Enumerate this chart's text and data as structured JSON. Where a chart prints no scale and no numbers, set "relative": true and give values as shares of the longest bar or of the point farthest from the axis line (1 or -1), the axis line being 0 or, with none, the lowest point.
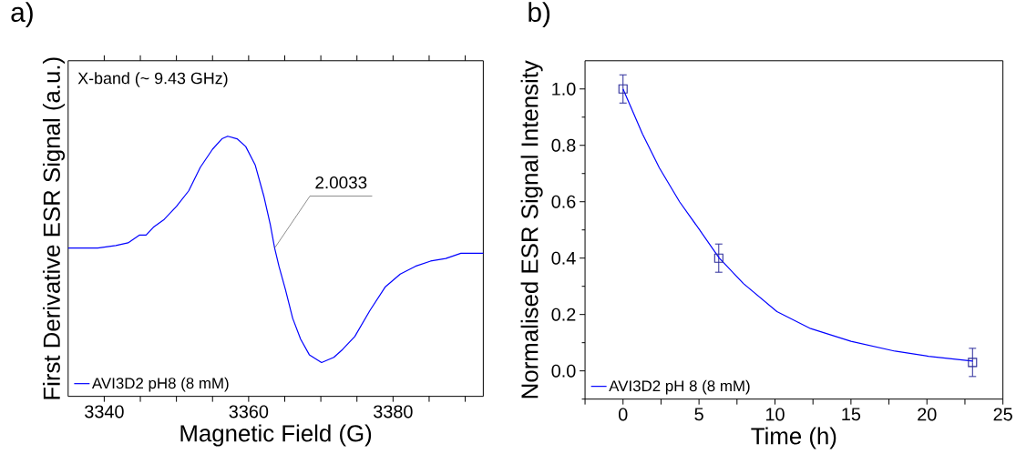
{
  "chart_data": [
    {
      "type": "line",
      "title": "a)",
      "xlabel": "Magnetic Field (G)",
      "ylabel": "First Derivative ESR Signal (a.u.)",
      "relative": true,
      "annotations": [
        "X-band (~ 9.43 GHz)",
        {
          "text": "2.0033",
          "x": 3363.6,
          "y": 0.57
        }
      ],
      "xlim": [
        3335,
        3392.5
      ],
      "xticks": [
        3340,
        3360,
        3380,
        {
          "value": 3345,
          "label": null
        },
        {
          "value": 3350,
          "label": null
        },
        {
          "value": 3355,
          "label": null
        },
        {
          "value": 3365,
          "label": null
        },
        {
          "value": 3370,
          "label": null
        },
        {
          "value": 3375,
          "label": null
        },
        {
          "value": 3385,
          "label": null
        },
        {
          "value": 3390,
          "label": null
        }
      ],
      "legend": "bottom left",
      "series": [
        {
          "name": "AVI3D2 pH8 (8 mM)",
          "color": "#0000ff",
          "x": [
            3335,
            3339.1,
            3341.6,
            3343.3,
            3344.9,
            3345.8,
            3346.8,
            3348.3,
            3350.0,
            3351.7,
            3353.3,
            3355.0,
            3356.3,
            3357.1,
            3358.4,
            3359.6,
            3360.9,
            3362.1,
            3363.0,
            3363.6,
            3364.2,
            3365.1,
            3366.1,
            3367.2,
            3368.4,
            3370.1,
            3371.8,
            3373.0,
            3374.7,
            3376.8,
            3378.9,
            3381.0,
            3383.1,
            3385.2,
            3387.3,
            3389.4,
            3392.5
          ],
          "values": [
            0.57,
            0.57,
            0.58,
            0.59,
            0.62,
            0.62,
            0.65,
            0.68,
            0.73,
            0.79,
            0.88,
            0.95,
            0.99,
            1.0,
            0.99,
            0.96,
            0.89,
            0.77,
            0.66,
            0.57,
            0.5,
            0.41,
            0.3,
            0.22,
            0.16,
            0.13,
            0.15,
            0.18,
            0.23,
            0.33,
            0.42,
            0.47,
            0.5,
            0.52,
            0.53,
            0.55,
            0.55
          ]
        }
      ]
    },
    {
      "type": "scatter",
      "title": "b)",
      "xlabel": "Time (h)",
      "ylabel": "Normalised ESR Signal Intensity",
      "xlim": [
        -2.5,
        25
      ],
      "ylim": [
        -0.1,
        1.1
      ],
      "xticks": [
        0,
        5,
        10,
        15,
        20,
        25,
        {
          "value": -2.5,
          "label": null
        },
        {
          "value": 2.5,
          "label": null
        },
        {
          "value": 7.5,
          "label": null
        },
        {
          "value": 12.5,
          "label": null
        },
        {
          "value": 17.5,
          "label": null
        },
        {
          "value": 22.5,
          "label": null
        }
      ],
      "yticks": [
        {
          "value": 0.0,
          "label": "0.0"
        },
        0.2,
        0.4,
        0.6,
        0.8,
        {
          "value": 1.0,
          "label": "1.0"
        },
        {
          "value": -0.1,
          "label": null
        },
        {
          "value": 0.1,
          "label": null
        },
        {
          "value": 0.3,
          "label": null
        },
        {
          "value": 0.5,
          "label": null
        },
        {
          "value": 0.7,
          "label": null
        },
        {
          "value": 0.9,
          "label": null
        }
      ],
      "legend": "bottom left",
      "series": [
        {
          "type": "scatter",
          "marker": "square",
          "color": "#2b2b9a",
          "x": [
            0,
            6.3,
            23.0
          ],
          "values": [
            1.0,
            0.4,
            0.03
          ],
          "errors": [
            0.05,
            0.05,
            0.05
          ]
        },
        {
          "type": "line",
          "name": "AVI3D2 pH 8 (8 mM)",
          "color": "#0000ff",
          "x": [
            0,
            1.28,
            2.39,
            3.72,
            5.04,
            6.33,
            7.92,
            10.13,
            12.35,
            15.0,
            17.9,
            20.1,
            23.0
          ],
          "values": [
            1.0,
            0.84,
            0.72,
            0.6,
            0.5,
            0.4,
            0.31,
            0.21,
            0.15,
            0.105,
            0.07,
            0.052,
            0.035
          ]
        }
      ]
    }
  ]
}
